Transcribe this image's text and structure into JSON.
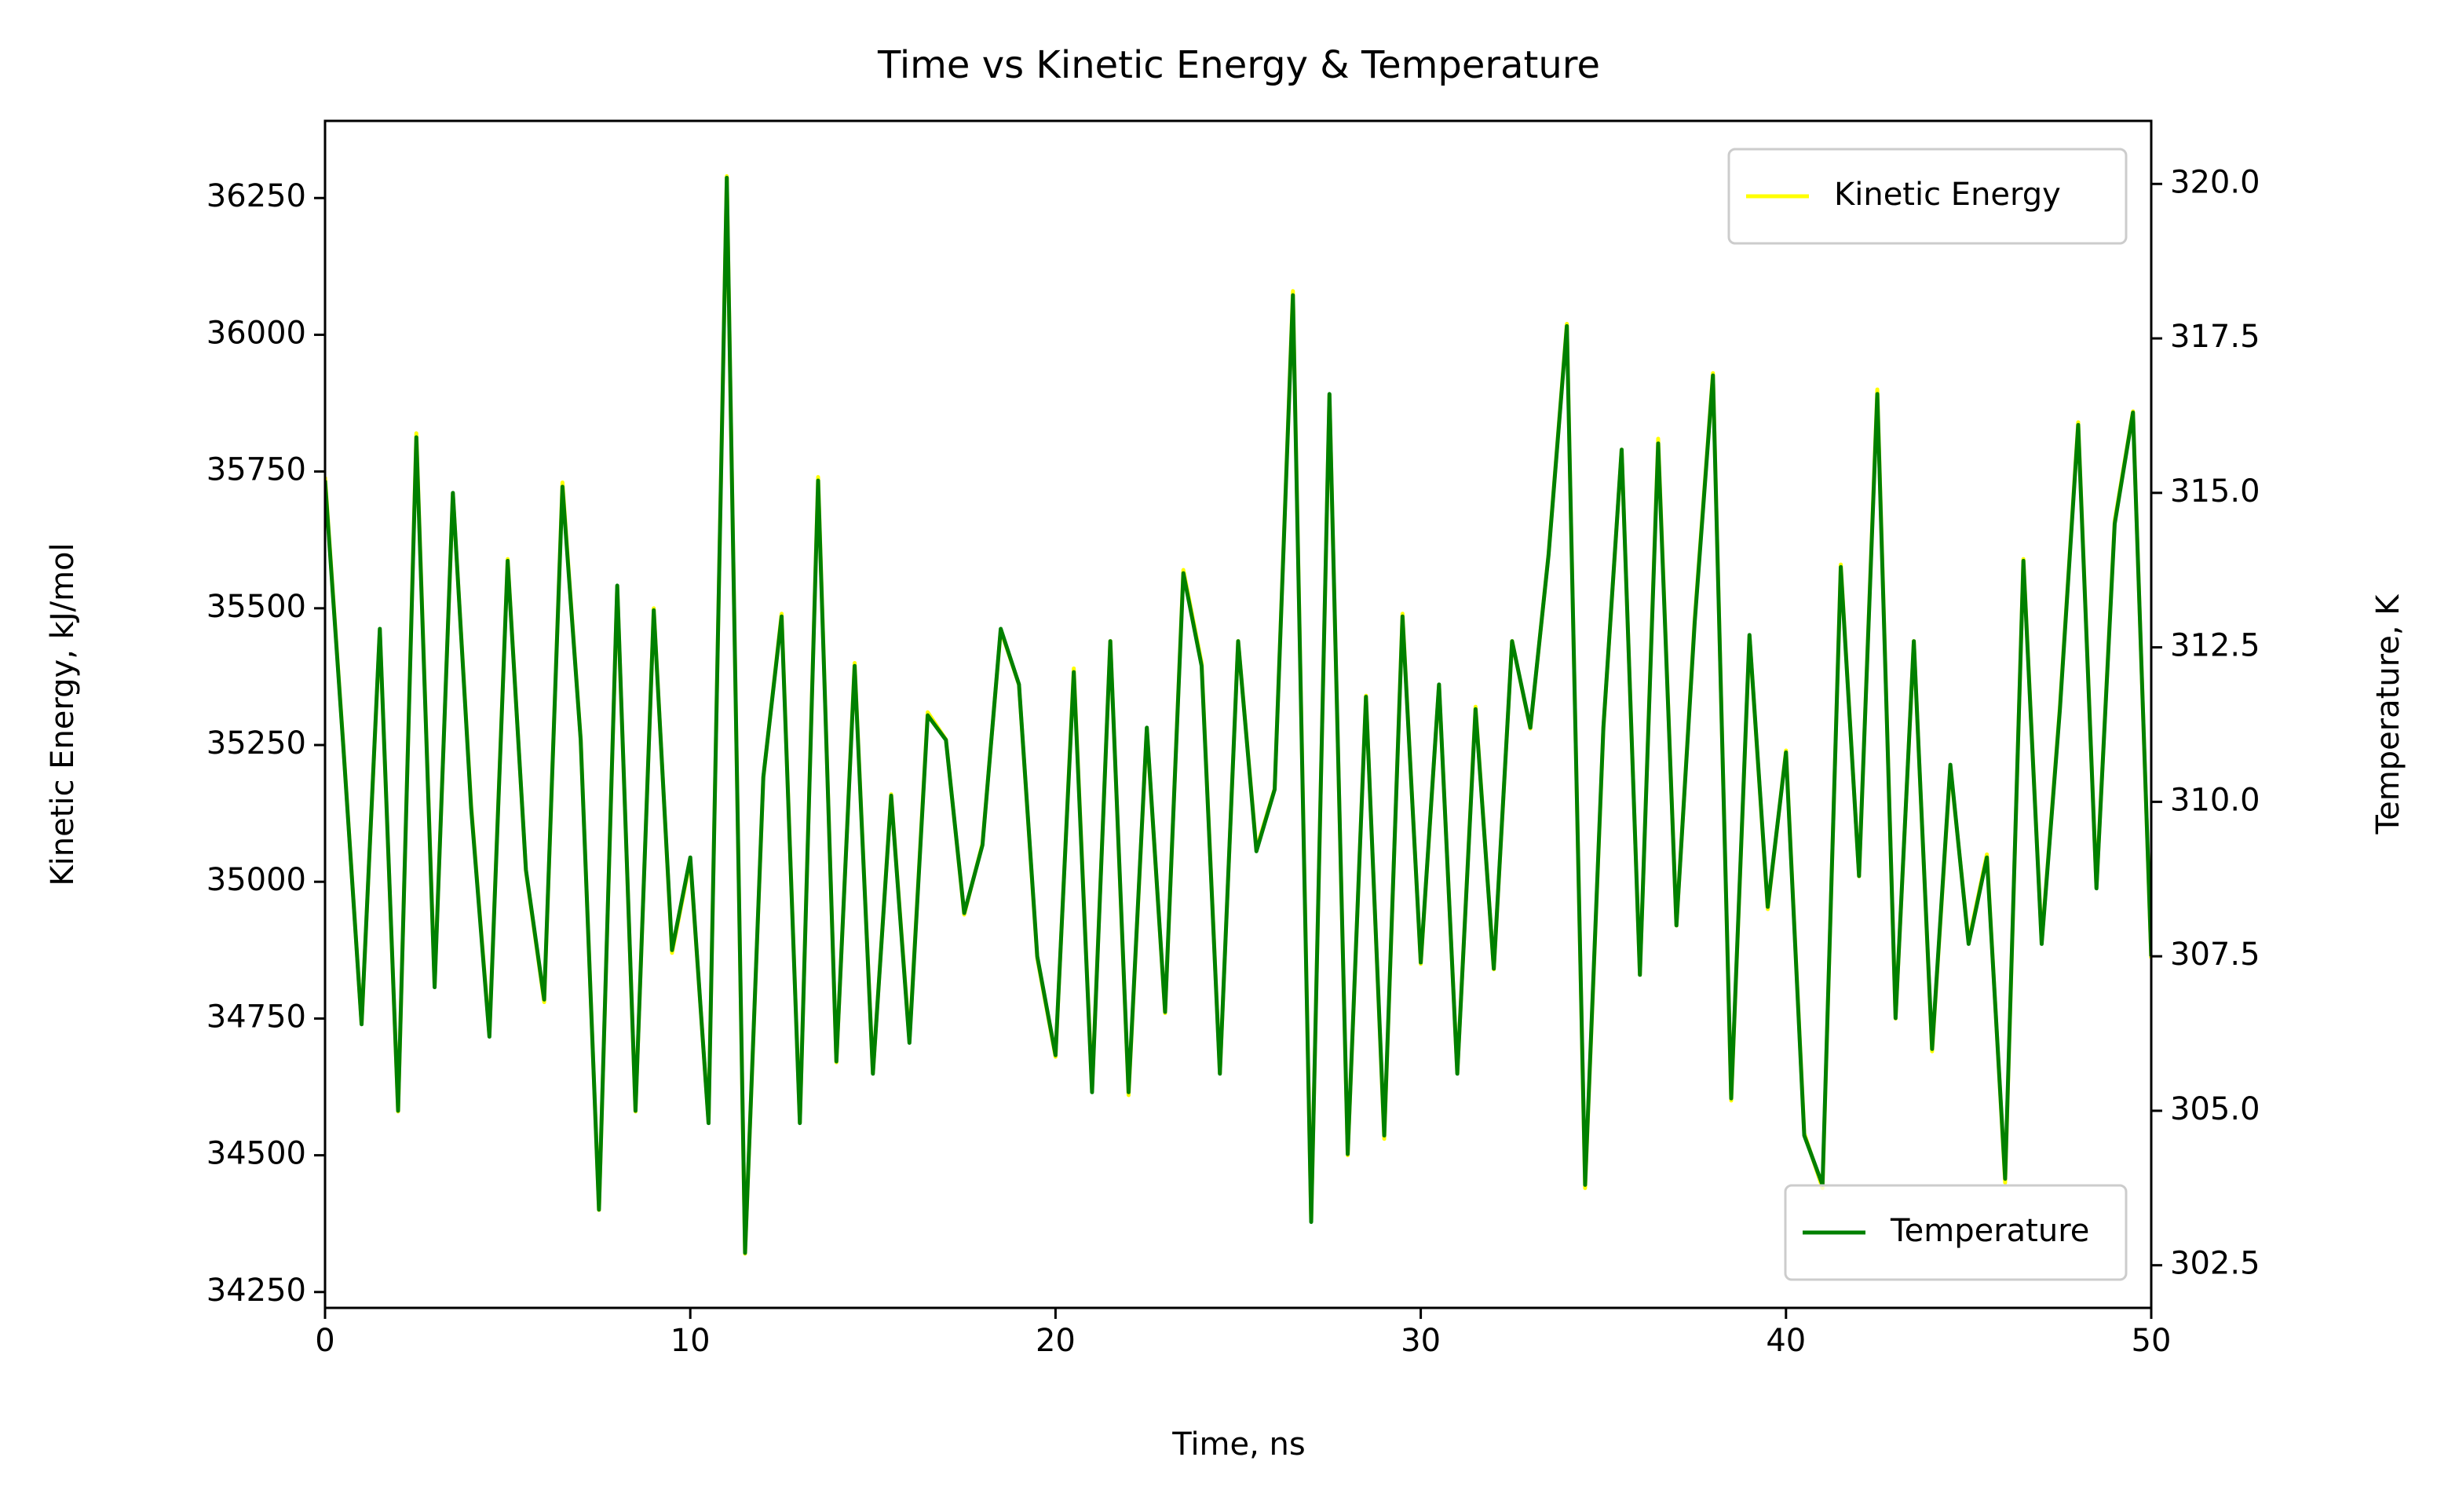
{
  "chart_data": {
    "type": "line",
    "title": "Time vs Kinetic Energy & Temperature",
    "x_label": "Time, ns",
    "y_label": "Kinetic Energy, kJ/mol",
    "y2_label": "Temperature, K",
    "x": [
      0,
      0.5,
      1,
      1.5,
      2,
      2.5,
      3,
      3.5,
      4,
      4.5,
      5,
      5.5,
      6,
      6.5,
      7,
      7.5,
      8,
      8.5,
      9,
      9.5,
      10,
      10.5,
      11,
      11.5,
      12,
      12.5,
      13,
      13.5,
      14,
      14.5,
      15,
      15.5,
      16,
      16.5,
      17,
      17.5,
      18,
      18.5,
      19,
      19.5,
      20,
      20.5,
      21,
      21.5,
      22,
      22.5,
      23,
      23.5,
      24,
      24.5,
      25,
      25.5,
      26,
      26.5,
      27,
      27.5,
      28,
      28.5,
      29,
      29.5,
      30,
      30.5,
      31,
      31.5,
      32,
      32.5,
      33,
      33.5,
      34,
      34.5,
      35,
      35.5,
      36,
      36.5,
      37,
      37.5,
      38,
      38.5,
      39,
      39.5,
      40,
      40.5,
      41,
      41.5,
      42,
      42.5,
      43,
      43.5,
      44,
      44.5,
      45,
      45.5,
      46,
      46.5,
      47,
      47.5,
      48,
      48.5,
      49,
      49.5,
      50
    ],
    "series": [
      {
        "name": "Kinetic Energy",
        "color": "#ffff00",
        "axis": "y",
        "values": [
          35740,
          35250,
          34740,
          35460,
          34580,
          35820,
          34810,
          35710,
          35140,
          34720,
          35590,
          35020,
          34780,
          35730,
          35260,
          34400,
          35540,
          34580,
          35500,
          34870,
          35040,
          34560,
          36290,
          34320,
          35190,
          35490,
          34560,
          35740,
          34670,
          35400,
          34650,
          35160,
          34710,
          35310,
          35260,
          34940,
          35070,
          35460,
          35360,
          34860,
          34680,
          35390,
          34620,
          35440,
          34610,
          35280,
          34760,
          35570,
          35400,
          34650,
          35440,
          35060,
          35170,
          36080,
          34380,
          35890,
          34500,
          35340,
          34530,
          35490,
          34850,
          35360,
          34650,
          35320,
          34840,
          35440,
          35280,
          35600,
          36020,
          34440,
          35280,
          35790,
          34830,
          35810,
          34920,
          35480,
          35930,
          34600,
          35450,
          34950,
          35240,
          34540,
          34440,
          35580,
          35010,
          35900,
          34750,
          35440,
          34690,
          35210,
          34890,
          35050,
          34450,
          35590,
          34890,
          35320,
          35840,
          34990,
          35660,
          35860,
          34860
        ]
      },
      {
        "name": "Temperature",
        "color": "#008000",
        "axis": "y2",
        "values": [
          315.2,
          310.9,
          306.4,
          312.8,
          305.0,
          315.9,
          307.0,
          315.0,
          309.9,
          306.2,
          313.9,
          308.9,
          306.8,
          315.1,
          311.0,
          303.4,
          313.5,
          305.0,
          313.1,
          307.6,
          309.1,
          304.8,
          320.1,
          302.7,
          310.4,
          313.0,
          304.8,
          315.2,
          305.8,
          312.2,
          305.6,
          310.1,
          306.1,
          311.4,
          311.0,
          308.2,
          309.3,
          312.8,
          311.9,
          307.5,
          305.9,
          312.1,
          305.3,
          312.6,
          305.3,
          311.2,
          306.6,
          313.7,
          312.2,
          305.6,
          312.6,
          309.2,
          310.2,
          318.2,
          303.2,
          316.6,
          304.3,
          311.7,
          304.6,
          313.0,
          307.4,
          311.9,
          305.6,
          311.5,
          307.3,
          312.6,
          311.2,
          314.0,
          317.7,
          303.8,
          311.2,
          315.7,
          307.2,
          315.8,
          308.0,
          312.9,
          316.9,
          305.2,
          312.7,
          308.3,
          310.8,
          304.6,
          303.8,
          313.8,
          308.8,
          316.6,
          306.5,
          312.6,
          306.0,
          310.6,
          307.7,
          309.1,
          303.9,
          313.9,
          307.7,
          311.5,
          316.1,
          308.6,
          314.5,
          316.3,
          307.5
        ]
      }
    ],
    "xlim": [
      0,
      50
    ],
    "xticks": [
      0,
      10,
      20,
      30,
      40,
      50
    ],
    "ylim": [
      34221,
      36391
    ],
    "yticks": [
      34250,
      34500,
      34750,
      35000,
      35250,
      35500,
      35750,
      36000,
      36250
    ],
    "y2lim": [
      301.81,
      321.02
    ],
    "y2ticks": [
      302.5,
      {
        "value": 305,
        "label": "305.0"
      },
      307.5,
      {
        "value": 310,
        "label": "310.0"
      },
      312.5,
      {
        "value": 315,
        "label": "315.0"
      },
      317.5,
      {
        "value": 320,
        "label": "320.0"
      }
    ],
    "legend_loc": "upper right",
    "y2_legend_loc": "lower right",
    "grid": false
  }
}
